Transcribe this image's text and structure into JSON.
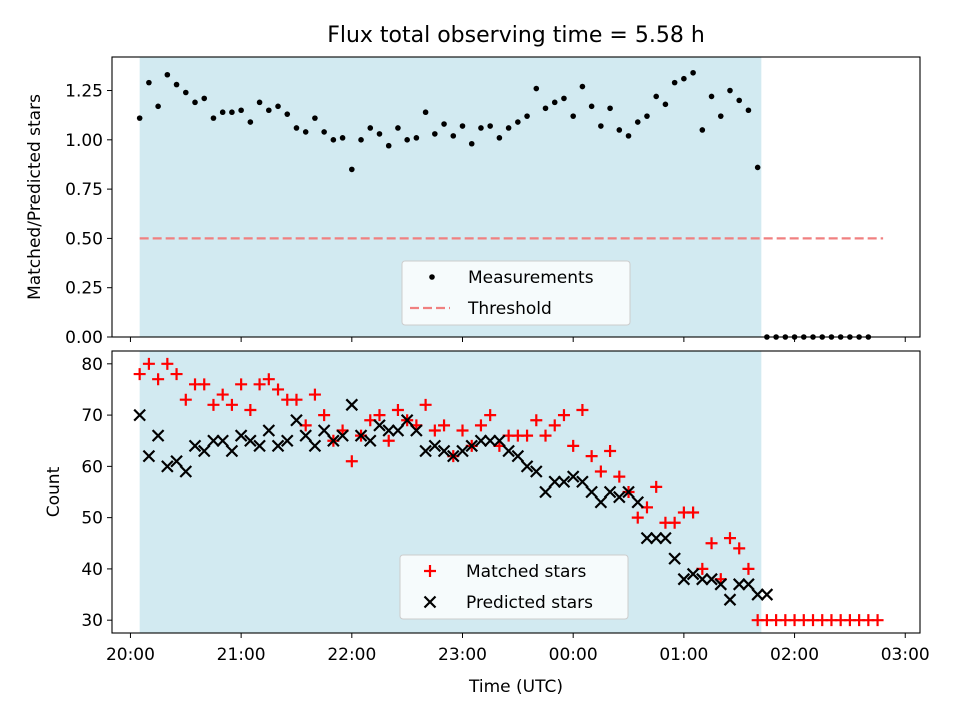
{
  "chart_data": [
    {
      "type": "scatter",
      "title": "Flux total observing time = 5.58 h",
      "xlabel": "",
      "ylabel": "Matched/Predicted stars",
      "ylim": [
        0,
        1.42
      ],
      "xlim": [
        "19:50",
        "03:08"
      ],
      "yticks": [
        "0.00",
        "0.25",
        "0.50",
        "0.75",
        "1.00",
        "1.25"
      ],
      "ytick_values": [
        0,
        0.25,
        0.5,
        0.75,
        1.0,
        1.25
      ],
      "grid": false,
      "legend_position": "lower-center",
      "shaded_interval": {
        "start": "20:05",
        "end": "01:42",
        "color": "#add8e6"
      },
      "threshold": {
        "value": 0.5,
        "start": "20:05",
        "end": "02:48",
        "color": "#f08080"
      },
      "x_times": [
        "20:05",
        "20:10",
        "20:15",
        "20:20",
        "20:25",
        "20:30",
        "20:35",
        "20:40",
        "20:45",
        "20:50",
        "20:55",
        "21:00",
        "21:05",
        "21:10",
        "21:15",
        "21:20",
        "21:25",
        "21:30",
        "21:35",
        "21:40",
        "21:45",
        "21:50",
        "21:55",
        "22:00",
        "22:05",
        "22:10",
        "22:15",
        "22:20",
        "22:25",
        "22:30",
        "22:35",
        "22:40",
        "22:45",
        "22:50",
        "22:55",
        "23:00",
        "23:05",
        "23:10",
        "23:15",
        "23:20",
        "23:25",
        "23:30",
        "23:35",
        "23:40",
        "23:45",
        "23:50",
        "23:55",
        "00:00",
        "00:05",
        "00:10",
        "00:15",
        "00:20",
        "00:25",
        "00:30",
        "00:35",
        "00:40",
        "00:45",
        "00:50",
        "00:55",
        "01:00",
        "01:05",
        "01:10",
        "01:15",
        "01:20",
        "01:25",
        "01:30",
        "01:35",
        "01:40",
        "01:45",
        "01:50",
        "01:55",
        "02:00",
        "02:05",
        "02:10",
        "02:15",
        "02:20",
        "02:25",
        "02:30",
        "02:35",
        "02:40",
        "02:45"
      ],
      "series": [
        {
          "name": "Measurements",
          "marker": "dot",
          "color": "#000000",
          "values": [
            1.11,
            1.29,
            1.17,
            1.33,
            1.28,
            1.24,
            1.19,
            1.21,
            1.11,
            1.14,
            1.14,
            1.15,
            1.09,
            1.19,
            1.15,
            1.17,
            1.13,
            1.06,
            1.04,
            1.11,
            1.04,
            1.0,
            1.01,
            0.85,
            1.0,
            1.06,
            1.03,
            0.97,
            1.06,
            1.0,
            1.01,
            1.14,
            1.03,
            1.08,
            1.02,
            1.07,
            0.98,
            1.06,
            1.07,
            1.01,
            1.06,
            1.09,
            1.12,
            1.26,
            1.16,
            1.19,
            1.21,
            1.12,
            1.27,
            1.17,
            1.07,
            1.16,
            1.05,
            1.02,
            1.09,
            1.12,
            1.22,
            1.18,
            1.29,
            1.31,
            1.34,
            1.05,
            1.22,
            1.12,
            1.25,
            1.2,
            1.15,
            0.86,
            0,
            0,
            0,
            0,
            0,
            0,
            0,
            0,
            0,
            0,
            0,
            0,
            null
          ]
        }
      ],
      "legend": [
        {
          "label": "Measurements",
          "marker": "dot",
          "color": "#000000"
        },
        {
          "label": "Threshold",
          "marker": "dashed-line",
          "color": "#f08080"
        }
      ]
    },
    {
      "type": "scatter",
      "title": "",
      "xlabel": "Time (UTC)",
      "ylabel": "Count",
      "ylim": [
        27.5,
        82.5
      ],
      "xlim": [
        "19:50",
        "03:08"
      ],
      "xticks": [
        "20:00",
        "21:00",
        "22:00",
        "23:00",
        "00:00",
        "01:00",
        "02:00",
        "03:00"
      ],
      "yticks": [
        "30",
        "40",
        "50",
        "60",
        "70",
        "80"
      ],
      "ytick_values": [
        30,
        40,
        50,
        60,
        70,
        80
      ],
      "grid": false,
      "legend_position": "lower-center",
      "series": [
        {
          "name": "Matched stars",
          "marker": "plus",
          "color": "#ff0000",
          "values": [
            78,
            80,
            77,
            80,
            78,
            73,
            76,
            76,
            72,
            74,
            72,
            76,
            71,
            76,
            77,
            75,
            73,
            73,
            68,
            74,
            70,
            65,
            67,
            61,
            66,
            69,
            70,
            65,
            71,
            69,
            68,
            72,
            67,
            68,
            62,
            67,
            64,
            68,
            70,
            64,
            66,
            66,
            66,
            69,
            66,
            68,
            70,
            64,
            71,
            62,
            59,
            63,
            58,
            55,
            50,
            52,
            56,
            49,
            49,
            51,
            51,
            40,
            45,
            38,
            46,
            44,
            40,
            30,
            30,
            30,
            30,
            30,
            30,
            30,
            30,
            30,
            30,
            30,
            30,
            30,
            30
          ]
        },
        {
          "name": "Predicted stars",
          "marker": "x",
          "color": "#000000",
          "values": [
            70,
            62,
            66,
            60,
            61,
            59,
            64,
            63,
            65,
            65,
            63,
            66,
            65,
            64,
            67,
            64,
            65,
            69,
            66,
            64,
            67,
            65,
            66,
            72,
            66,
            65,
            68,
            67,
            67,
            69,
            67,
            63,
            64,
            63,
            62,
            63,
            64,
            65,
            65,
            65,
            63,
            62,
            60,
            59,
            55,
            57,
            57,
            58,
            57,
            55,
            53,
            55,
            54,
            55,
            53,
            46,
            46,
            46,
            42,
            38,
            39,
            38,
            38,
            37,
            34,
            37,
            37,
            35,
            35,
            null,
            null,
            null,
            null,
            null,
            null,
            null,
            null,
            null,
            null,
            null,
            null
          ]
        }
      ],
      "legend": [
        {
          "label": "Matched stars",
          "marker": "plus",
          "color": "#ff0000"
        },
        {
          "label": "Predicted stars",
          "marker": "x",
          "color": "#000000"
        }
      ]
    }
  ]
}
